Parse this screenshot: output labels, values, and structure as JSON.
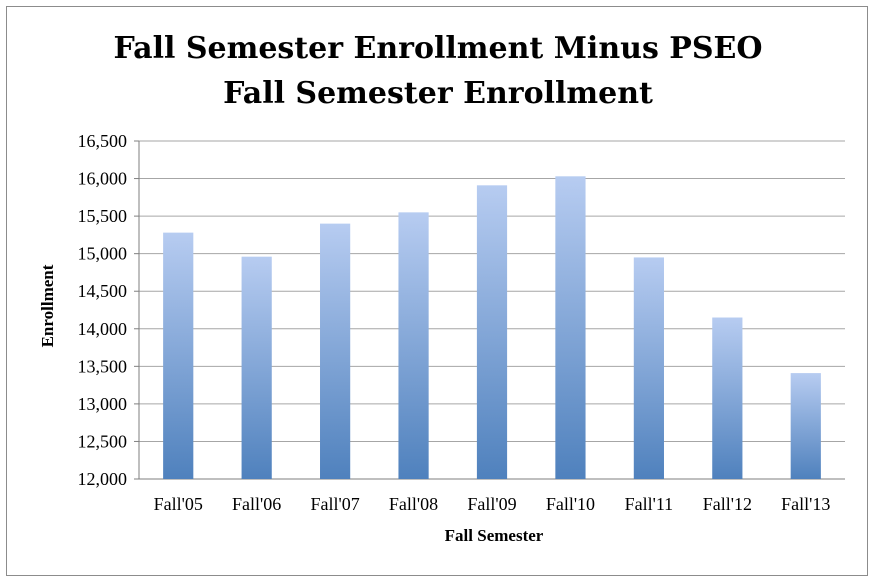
{
  "chart_data": {
    "type": "bar",
    "title": [
      "Fall Semester Enrollment Minus PSEO",
      "Fall Semester Enrollment"
    ],
    "xlabel": "Fall Semester",
    "ylabel": "Enrollment",
    "categories": [
      "Fall'05",
      "Fall'06",
      "Fall'07",
      "Fall'08",
      "Fall'09",
      "Fall'10",
      "Fall'11",
      "Fall'12",
      "Fall'13"
    ],
    "values": [
      15280,
      14960,
      15400,
      15550,
      15910,
      16030,
      14950,
      14150,
      13410
    ],
    "ylim": [
      12000,
      16500
    ],
    "yticks": [
      12000,
      12500,
      13000,
      13500,
      14000,
      14500,
      15000,
      15500,
      16000,
      16500
    ],
    "ytick_labels": [
      "12,000",
      "12,500",
      "13,000",
      "13,500",
      "14,000",
      "14,500",
      "15,000",
      "15,500",
      "16,000",
      "16,500"
    ],
    "grid": true,
    "bar_color_top": "#b7ccf1",
    "bar_color_bottom": "#4f81bd"
  }
}
